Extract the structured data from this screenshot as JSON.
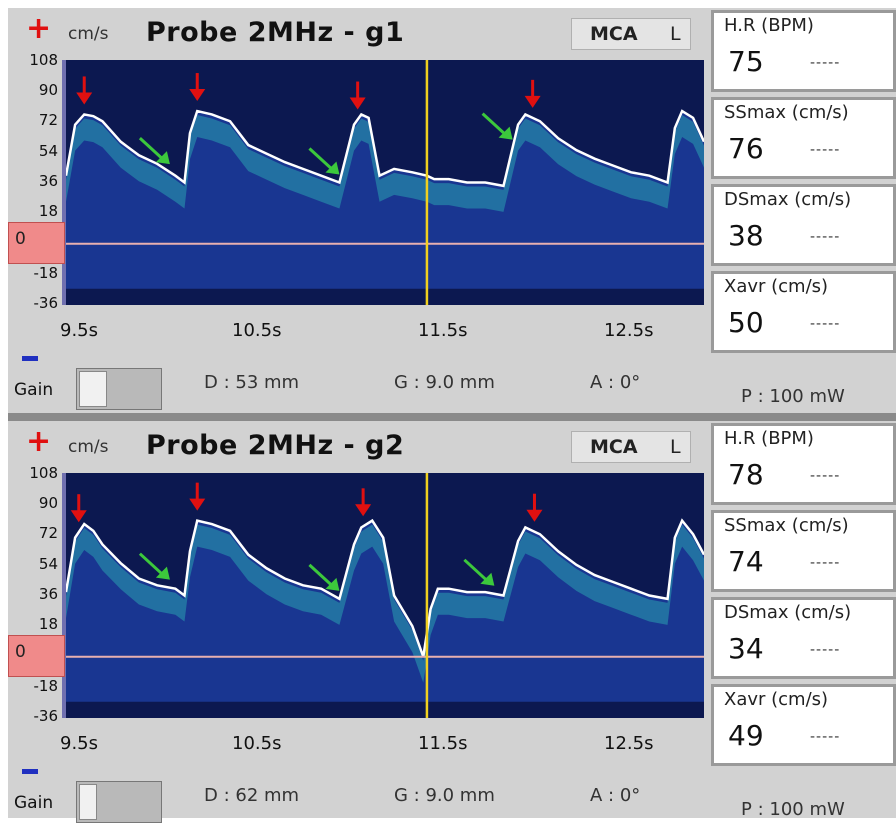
{
  "colors": {
    "background": "#d2d2d2",
    "spectrum_background": "#0c1850",
    "envelope": "#ffffff",
    "peak_arrow": "#e01010",
    "dicrotic_arrow": "#3cc83c",
    "cursor_line": "#f0d020",
    "baseline": "#e8b0b0",
    "zero_box": "#f08a8a",
    "plus_sign": "#e01010",
    "minus_sign": "#2030c0"
  },
  "icons": {
    "plus": "plus-icon",
    "minus": "minus-icon",
    "peak_marker": "red-down-arrow-icon",
    "notch_marker": "green-diagonal-arrow-icon"
  },
  "panels": [
    {
      "unit": "cm/s",
      "title": "Probe 2MHz - g1",
      "vessel": "MCA",
      "side": "L",
      "zero_label": "0",
      "gain_label": "Gain",
      "gain_level": 0.2,
      "depth": "D :  53 mm",
      "gate": "G : 9.0 mm",
      "angle": "A : 0°",
      "power": "P :  100 mW",
      "metrics": [
        {
          "label": "H.R (BPM)",
          "value": "75",
          "dash": "-----"
        },
        {
          "label": "SSmax (cm/s)",
          "value": "76",
          "dash": "-----"
        },
        {
          "label": "DSmax (cm/s)",
          "value": "38",
          "dash": "-----"
        },
        {
          "label": "Xavr (cm/s)",
          "value": "50",
          "dash": "-----"
        }
      ],
      "chart_data": {
        "type": "line",
        "y_ticks": [
          "108",
          "90",
          "72",
          "54",
          "36",
          "18",
          "-18",
          "-36"
        ],
        "x_ticks": [
          "9.5s",
          "10.5s",
          "11.5s",
          "12.5s"
        ],
        "xlim": [
          9.4,
          12.9
        ],
        "ylim": [
          -36,
          108
        ],
        "grid": false,
        "envelope": {
          "x": [
            9.4,
            9.45,
            9.5,
            9.55,
            9.6,
            9.7,
            9.8,
            9.9,
            10.0,
            10.05,
            10.08,
            10.12,
            10.2,
            10.3,
            10.4,
            10.5,
            10.6,
            10.7,
            10.8,
            10.9,
            10.98,
            11.02,
            11.06,
            11.12,
            11.2,
            11.3,
            11.38,
            11.42,
            11.5,
            11.6,
            11.7,
            11.8,
            11.88,
            11.92,
            11.96,
            12.0,
            12.1,
            12.2,
            12.3,
            12.4,
            12.5,
            12.6,
            12.7,
            12.74,
            12.78,
            12.84,
            12.9
          ],
          "y": [
            40,
            70,
            76,
            75,
            72,
            60,
            52,
            47,
            40,
            36,
            65,
            78,
            76,
            72,
            58,
            53,
            48,
            44,
            40,
            36,
            70,
            76,
            74,
            40,
            44,
            42,
            40,
            38,
            38,
            36,
            36,
            34,
            70,
            76,
            74,
            72,
            62,
            55,
            50,
            46,
            42,
            40,
            36,
            68,
            78,
            74,
            60
          ]
        },
        "peak_markers_x": [
          9.5,
          10.12,
          11.0,
          11.96
        ],
        "notch_markers_x": [
          9.97,
          10.9,
          11.85
        ],
        "cursor_x": 11.38,
        "baseline_y": 0
      }
    },
    {
      "unit": "cm/s",
      "title": "Probe 2MHz - g2",
      "vessel": "MCA",
      "side": "L",
      "zero_label": "0",
      "gain_label": "Gain",
      "gain_level": 0.1,
      "depth": "D :  62 mm",
      "gate": "G : 9.0 mm",
      "angle": "A : 0°",
      "power": "P :  100 mW",
      "metrics": [
        {
          "label": "H.R (BPM)",
          "value": "78",
          "dash": "-----"
        },
        {
          "label": "SSmax (cm/s)",
          "value": "74",
          "dash": "-----"
        },
        {
          "label": "DSmax (cm/s)",
          "value": "34",
          "dash": "-----"
        },
        {
          "label": "Xavr (cm/s)",
          "value": "49",
          "dash": "-----"
        }
      ],
      "chart_data": {
        "type": "line",
        "y_ticks": [
          "108",
          "90",
          "72",
          "54",
          "36",
          "18",
          "-18",
          "-36"
        ],
        "x_ticks": [
          "9.5s",
          "10.5s",
          "11.5s",
          "12.5s"
        ],
        "xlim": [
          9.4,
          12.9
        ],
        "ylim": [
          -36,
          108
        ],
        "grid": false,
        "envelope": {
          "x": [
            9.4,
            9.45,
            9.5,
            9.55,
            9.6,
            9.7,
            9.8,
            9.9,
            10.0,
            10.05,
            10.08,
            10.12,
            10.2,
            10.3,
            10.4,
            10.5,
            10.6,
            10.7,
            10.8,
            10.9,
            10.98,
            11.02,
            11.08,
            11.14,
            11.2,
            11.3,
            11.36,
            11.4,
            11.44,
            11.5,
            11.6,
            11.7,
            11.8,
            11.88,
            11.92,
            11.96,
            12.0,
            12.1,
            12.2,
            12.3,
            12.4,
            12.5,
            12.6,
            12.7,
            12.74,
            12.78,
            12.84,
            12.9
          ],
          "y": [
            38,
            70,
            78,
            74,
            66,
            55,
            46,
            42,
            40,
            36,
            62,
            80,
            78,
            74,
            60,
            52,
            46,
            42,
            40,
            34,
            66,
            76,
            80,
            70,
            36,
            18,
            0,
            28,
            40,
            40,
            38,
            38,
            36,
            68,
            76,
            74,
            72,
            62,
            54,
            48,
            44,
            40,
            36,
            34,
            70,
            80,
            72,
            60
          ]
        },
        "peak_markers_x": [
          9.47,
          10.12,
          11.03,
          11.97
        ],
        "notch_markers_x": [
          9.97,
          10.9,
          11.75
        ],
        "cursor_x": 11.38,
        "baseline_y": 0
      }
    }
  ]
}
